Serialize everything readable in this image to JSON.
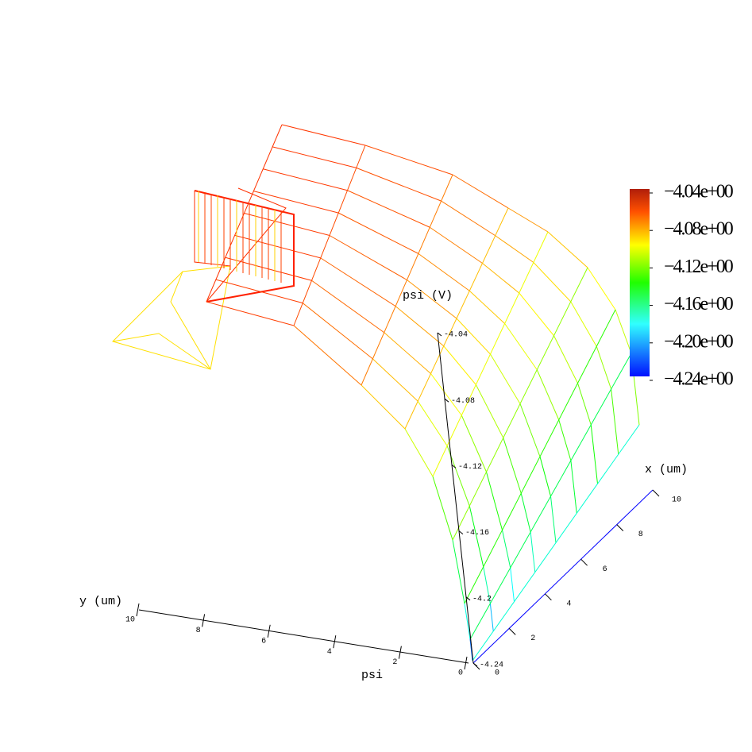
{
  "chart_data": {
    "type": "surface3d",
    "title": "psi",
    "xlabel": "x (um)",
    "ylabel": "y (um)",
    "zlabel": "psi (V)",
    "xlim": [
      0,
      10
    ],
    "xticks": [
      0,
      2,
      4,
      6,
      8,
      10
    ],
    "ylim": [
      0,
      10
    ],
    "yticks": [
      0,
      2,
      4,
      6,
      8,
      10
    ],
    "zlim": [
      -4.24,
      -4.04
    ],
    "zticks": [
      -4.04,
      -4.08,
      -4.12,
      -4.16,
      -4.2,
      -4.24
    ],
    "clim": [
      -4.24,
      -4.04
    ],
    "colorbar_ticks": [
      {
        "value": -4.04,
        "label": "−4.04e+00"
      },
      {
        "value": -4.08,
        "label": "−4.08e+00"
      },
      {
        "value": -4.12,
        "label": "−4.12e+00"
      },
      {
        "value": -4.16,
        "label": "−4.16e+00"
      },
      {
        "value": -4.2,
        "label": "−4.20e+00"
      },
      {
        "value": -4.24,
        "label": "−4.24e+00"
      }
    ]
  }
}
